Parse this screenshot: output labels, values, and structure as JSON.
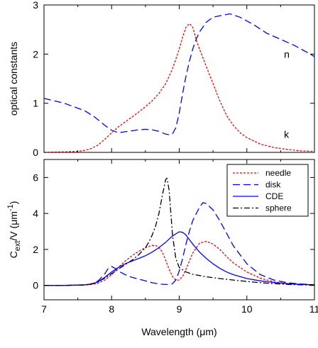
{
  "chart_data": [
    {
      "type": "line",
      "panel": "top",
      "ylabel": "optical constants",
      "xlim": [
        7,
        11
      ],
      "ylim": [
        0,
        3
      ],
      "xticks": [
        "7",
        "8",
        "9",
        "10",
        "11"
      ],
      "yticks": [
        "0",
        "1",
        "2",
        "3"
      ],
      "grid": false,
      "annotations": [
        {
          "text": "n",
          "x": 10.55,
          "y": 2.0
        },
        {
          "text": "k",
          "x": 10.55,
          "y": 0.37
        }
      ],
      "series": [
        {
          "id": "n",
          "color": "#0000ff",
          "dash": "10,5",
          "x": [
            7.0,
            7.3,
            7.6,
            7.75,
            7.9,
            8.0,
            8.1,
            8.2,
            8.3,
            8.4,
            8.5,
            8.6,
            8.7,
            8.75,
            8.8,
            8.85,
            8.9,
            8.95,
            9.0,
            9.05,
            9.1,
            9.15,
            9.2,
            9.25,
            9.3,
            9.4,
            9.5,
            9.6,
            9.75,
            9.9,
            10.1,
            10.3,
            10.5,
            10.7,
            10.9,
            11.0
          ],
          "y": [
            1.1,
            1.0,
            0.85,
            0.72,
            0.55,
            0.45,
            0.4,
            0.42,
            0.44,
            0.46,
            0.47,
            0.46,
            0.43,
            0.4,
            0.37,
            0.36,
            0.38,
            0.5,
            0.8,
            1.2,
            1.55,
            1.85,
            2.1,
            2.3,
            2.45,
            2.65,
            2.75,
            2.78,
            2.82,
            2.75,
            2.6,
            2.42,
            2.3,
            2.18,
            2.03,
            1.95
          ]
        },
        {
          "id": "k",
          "color": "#ff0000",
          "dash": "3,2",
          "x": [
            7.0,
            7.3,
            7.5,
            7.6,
            7.7,
            7.8,
            7.9,
            8.0,
            8.1,
            8.2,
            8.3,
            8.4,
            8.5,
            8.6,
            8.7,
            8.8,
            8.9,
            9.0,
            9.05,
            9.1,
            9.15,
            9.2,
            9.25,
            9.3,
            9.4,
            9.5,
            9.6,
            9.7,
            9.8,
            9.9,
            10.0,
            10.2,
            10.4,
            10.6,
            10.8,
            11.0
          ],
          "y": [
            0.0,
            0.01,
            0.02,
            0.04,
            0.08,
            0.15,
            0.27,
            0.4,
            0.52,
            0.62,
            0.72,
            0.82,
            0.93,
            1.05,
            1.2,
            1.4,
            1.7,
            2.1,
            2.35,
            2.55,
            2.62,
            2.55,
            2.3,
            2.1,
            1.75,
            1.4,
            1.05,
            0.75,
            0.55,
            0.4,
            0.3,
            0.17,
            0.1,
            0.06,
            0.03,
            0.02
          ]
        }
      ]
    },
    {
      "type": "line",
      "panel": "bottom",
      "ylabel_main": "C",
      "ylabel_sub": "ext",
      "ylabel_mid": "/V (μm",
      "ylabel_sup": "-1",
      "ylabel_end": ")",
      "xlabel": "Wavelength (μm)",
      "xlim": [
        7,
        11
      ],
      "ylim": [
        -0.8,
        7
      ],
      "xticks": [
        "7",
        "8",
        "9",
        "10",
        "11"
      ],
      "yticks": [
        "0",
        "2",
        "4",
        "6"
      ],
      "grid": false,
      "legend_position": "top-right",
      "series": [
        {
          "name": "needle",
          "color": "#ff0000",
          "dash": "3,2",
          "x": [
            7.0,
            7.3,
            7.6,
            7.7,
            7.8,
            7.9,
            8.0,
            8.1,
            8.2,
            8.3,
            8.4,
            8.5,
            8.6,
            8.65,
            8.7,
            8.75,
            8.8,
            8.85,
            8.9,
            8.95,
            9.0,
            9.05,
            9.1,
            9.2,
            9.3,
            9.4,
            9.5,
            9.6,
            9.7,
            9.8,
            10.0,
            10.2,
            10.4,
            10.6,
            10.8,
            11.0
          ],
          "y": [
            0.0,
            0.0,
            0.02,
            0.05,
            0.12,
            0.3,
            0.6,
            1.0,
            1.35,
            1.65,
            1.9,
            2.1,
            2.22,
            2.22,
            2.1,
            1.85,
            1.4,
            0.9,
            0.5,
            0.3,
            0.3,
            0.5,
            0.9,
            1.8,
            2.35,
            2.45,
            2.3,
            2.0,
            1.6,
            1.25,
            0.75,
            0.4,
            0.2,
            0.1,
            0.05,
            0.02
          ]
        },
        {
          "name": "disk",
          "color": "#0000ff",
          "dash": "10,5",
          "x": [
            7.0,
            7.3,
            7.6,
            7.7,
            7.8,
            7.9,
            7.95,
            8.0,
            8.05,
            8.1,
            8.2,
            8.3,
            8.4,
            8.5,
            8.6,
            8.7,
            8.8,
            8.85,
            8.9,
            8.95,
            9.0,
            9.05,
            9.1,
            9.15,
            9.2,
            9.3,
            9.35,
            9.4,
            9.5,
            9.6,
            9.7,
            9.8,
            10.0,
            10.2,
            10.4,
            10.6,
            10.8,
            11.0
          ],
          "y": [
            0.0,
            0.0,
            0.02,
            0.08,
            0.25,
            0.65,
            0.95,
            1.05,
            0.95,
            0.8,
            0.6,
            0.45,
            0.35,
            0.25,
            0.15,
            0.08,
            0.05,
            0.05,
            0.1,
            0.3,
            0.8,
            1.5,
            2.3,
            3.0,
            3.6,
            4.35,
            4.6,
            4.55,
            4.2,
            3.6,
            2.9,
            2.2,
            1.2,
            0.6,
            0.3,
            0.15,
            0.08,
            0.04
          ]
        },
        {
          "name": "CDE",
          "color": "#0000ff",
          "dash": "",
          "x": [
            7.0,
            7.3,
            7.6,
            7.7,
            7.8,
            7.9,
            8.0,
            8.1,
            8.2,
            8.3,
            8.4,
            8.5,
            8.6,
            8.7,
            8.8,
            8.9,
            9.0,
            9.05,
            9.1,
            9.15,
            9.2,
            9.3,
            9.4,
            9.5,
            9.6,
            9.7,
            9.8,
            10.0,
            10.2,
            10.4,
            10.6,
            10.8,
            11.0
          ],
          "y": [
            0.0,
            0.0,
            0.03,
            0.08,
            0.2,
            0.45,
            0.75,
            1.0,
            1.2,
            1.35,
            1.5,
            1.65,
            1.85,
            2.1,
            2.4,
            2.75,
            2.98,
            2.95,
            2.8,
            2.55,
            2.3,
            1.85,
            1.5,
            1.2,
            0.95,
            0.75,
            0.6,
            0.38,
            0.25,
            0.16,
            0.1,
            0.06,
            0.03
          ]
        },
        {
          "name": "sphere",
          "color": "#000000",
          "dash": "8,3,2,3",
          "x": [
            7.0,
            7.3,
            7.6,
            7.7,
            7.8,
            7.9,
            8.0,
            8.1,
            8.2,
            8.3,
            8.4,
            8.5,
            8.55,
            8.6,
            8.65,
            8.7,
            8.75,
            8.8,
            8.82,
            8.85,
            8.88,
            8.9,
            8.95,
            9.0,
            9.1,
            9.2,
            9.4,
            9.6,
            9.8,
            10.0,
            10.2,
            10.4,
            10.6,
            10.8,
            11.0
          ],
          "y": [
            0.0,
            0.0,
            0.03,
            0.08,
            0.2,
            0.4,
            0.65,
            0.9,
            1.15,
            1.4,
            1.7,
            2.1,
            2.4,
            2.8,
            3.3,
            4.0,
            5.0,
            5.9,
            5.95,
            5.3,
            3.8,
            2.8,
            1.5,
            1.0,
            0.75,
            0.62,
            0.48,
            0.38,
            0.3,
            0.22,
            0.15,
            0.1,
            0.06,
            0.03,
            0.01
          ]
        }
      ]
    }
  ]
}
